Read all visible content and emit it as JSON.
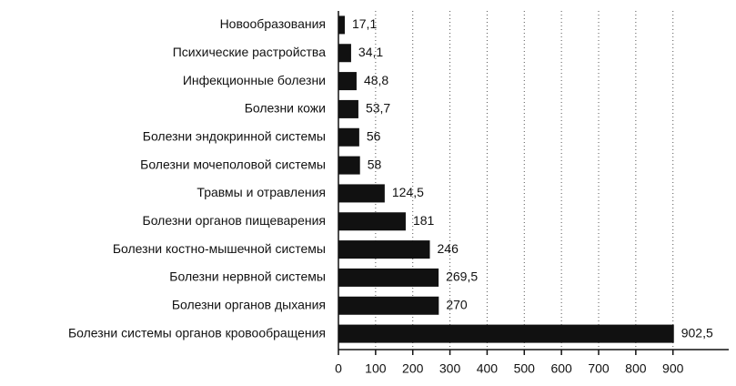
{
  "chart_data": {
    "type": "bar",
    "orientation": "horizontal",
    "categories": [
      "Новообразования",
      "Психические растройства",
      "Инфекционные болезни",
      "Болезни кожи",
      "Болезни эндокринной системы",
      "Болезни мочеполовой системы",
      "Травмы и отравления",
      "Болезни органов пищеварения",
      "Болезни костно-мышечной системы",
      "Болезни нервной системы",
      "Болезни органов дыхания",
      "Болезни системы органов кровообращения"
    ],
    "values": [
      17.1,
      34.1,
      48.8,
      53.7,
      56,
      58,
      124.5,
      181,
      246,
      269.5,
      270,
      902.5
    ],
    "value_labels": [
      "17,1",
      "34,1",
      "48,8",
      "53,7",
      "56",
      "58",
      "124,5",
      "181",
      "246",
      "269,5",
      "270",
      "902,5"
    ],
    "color": "#111111",
    "xlim": [
      0,
      1050
    ],
    "xticks": [
      0,
      100,
      200,
      300,
      400,
      500,
      600,
      700,
      800,
      900
    ],
    "grid": true
  }
}
